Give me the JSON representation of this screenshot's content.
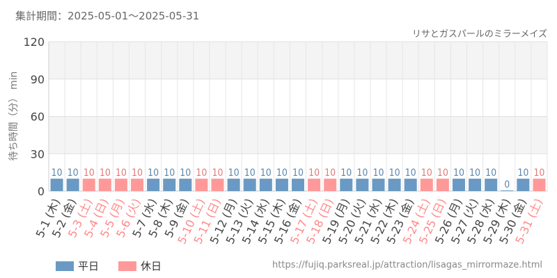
{
  "header": {
    "period": "集計期間：2025-05-01～2025-05-31",
    "attraction": "リサとガスパールのミラーメイズ"
  },
  "footer": {
    "source_url": "https://fujiq.parksreal.jp/attraction/lisagas_mirrormaze.html"
  },
  "colors": {
    "weekday": "#6a9ac4",
    "holiday": "#ff9999",
    "weekday_label": "#444444",
    "holiday_label": "#ff8888"
  },
  "chart_data": {
    "type": "bar",
    "ylabel": "待ち時間（分） min",
    "ylim": [
      0,
      120
    ],
    "yticks": [
      0,
      30,
      60,
      90,
      120
    ],
    "grid": true,
    "legend_position": "bottom-left",
    "legend": [
      {
        "key": "weekday",
        "label": "平日"
      },
      {
        "key": "holiday",
        "label": "休日"
      }
    ],
    "categories": [
      "5-1 (木)",
      "5-2 (金)",
      "5-3 (土)",
      "5-4 (日)",
      "5-5 (月)",
      "5-6 (火)",
      "5-7 (水)",
      "5-8 (木)",
      "5-9 (金)",
      "5-10 (土)",
      "5-11 (日)",
      "5-12 (月)",
      "5-13 (火)",
      "5-14 (水)",
      "5-15 (木)",
      "5-16 (金)",
      "5-17 (土)",
      "5-18 (日)",
      "5-19 (月)",
      "5-20 (火)",
      "5-21 (水)",
      "5-22 (木)",
      "5-23 (金)",
      "5-24 (土)",
      "5-25 (日)",
      "5-26 (月)",
      "5-27 (火)",
      "5-28 (水)",
      "5-29 (木)",
      "5-30 (金)",
      "5-31 (土)"
    ],
    "values": [
      10,
      10,
      10,
      10,
      10,
      10,
      10,
      10,
      10,
      10,
      10,
      10,
      10,
      10,
      10,
      10,
      10,
      10,
      10,
      10,
      10,
      10,
      10,
      10,
      10,
      10,
      10,
      10,
      0,
      10,
      10
    ],
    "day_type": [
      "weekday",
      "weekday",
      "holiday",
      "holiday",
      "holiday",
      "holiday",
      "weekday",
      "weekday",
      "weekday",
      "holiday",
      "holiday",
      "weekday",
      "weekday",
      "weekday",
      "weekday",
      "weekday",
      "holiday",
      "holiday",
      "weekday",
      "weekday",
      "weekday",
      "weekday",
      "weekday",
      "holiday",
      "holiday",
      "weekday",
      "weekday",
      "weekday",
      "weekday",
      "weekday",
      "holiday"
    ]
  }
}
